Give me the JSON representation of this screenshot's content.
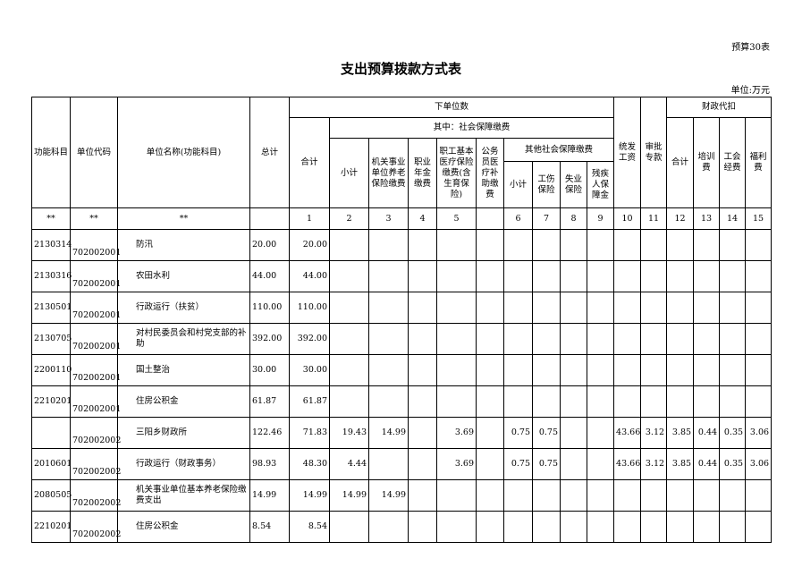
{
  "form_no": "预算30表",
  "title": "支出预算拨款方式表",
  "unit": "单位:万元",
  "headers": {
    "func": "功能科目",
    "code": "单位代码",
    "name": "单位名称(功能科目)",
    "total": "总计",
    "lower": "下单位数",
    "fiscal": "财政代扣",
    "heji": "合计",
    "social": "其中：社会保障缴费",
    "xiaoji": "小计",
    "pension": "机关事业单位养老保险缴费",
    "annuity": "职业年金缴费",
    "medical": "职工基本医疗保险缴费(含生育保险)",
    "civil": "公务员医疗补助缴费",
    "other": "其他社会保障缴费",
    "xiaoji2": "小计",
    "injury": "工伤保险",
    "unemp": "失业保险",
    "disab": "残疾人保障金",
    "salary": "统发工资",
    "special": "审批专款",
    "f_heji": "合计",
    "training": "培训费",
    "union": "工会经费",
    "welfare": "福利费"
  },
  "index_row": [
    "**",
    "**",
    "**",
    "",
    "1",
    "2",
    "3",
    "4",
    "5",
    "",
    "6",
    "7",
    "8",
    "9",
    "10",
    "11",
    "12",
    "13",
    "14",
    "15"
  ],
  "rows": [
    {
      "func": "2130314",
      "code": "702002001",
      "name": "防汛",
      "vals": [
        "20.00",
        "20.00",
        "",
        "",
        "",
        "",
        "",
        "",
        "",
        "",
        "",
        "",
        "",
        "",
        "",
        "",
        ""
      ]
    },
    {
      "func": "2130316",
      "code": "702002001",
      "name": "农田水利",
      "vals": [
        "44.00",
        "44.00",
        "",
        "",
        "",
        "",
        "",
        "",
        "",
        "",
        "",
        "",
        "",
        "",
        "",
        "",
        ""
      ]
    },
    {
      "func": "2130501",
      "code": "702002001",
      "name": "行政运行（扶贫）",
      "vals": [
        "110.00",
        "110.00",
        "",
        "",
        "",
        "",
        "",
        "",
        "",
        "",
        "",
        "",
        "",
        "",
        "",
        "",
        ""
      ]
    },
    {
      "func": "2130705",
      "code": "702002001",
      "name": "对村民委员会和村党支部的补助",
      "vals": [
        "392.00",
        "392.00",
        "",
        "",
        "",
        "",
        "",
        "",
        "",
        "",
        "",
        "",
        "",
        "",
        "",
        "",
        ""
      ]
    },
    {
      "func": "2200110",
      "code": "702002001",
      "name": "国土整治",
      "vals": [
        "30.00",
        "30.00",
        "",
        "",
        "",
        "",
        "",
        "",
        "",
        "",
        "",
        "",
        "",
        "",
        "",
        "",
        ""
      ]
    },
    {
      "func": "2210201",
      "code": "702002001",
      "name": "住房公积金",
      "vals": [
        "61.87",
        "61.87",
        "",
        "",
        "",
        "",
        "",
        "",
        "",
        "",
        "",
        "",
        "",
        "",
        "",
        "",
        ""
      ]
    },
    {
      "func": "",
      "code": "702002002",
      "name": "三阳乡财政所",
      "vals": [
        "122.46",
        "71.83",
        "19.43",
        "14.99",
        "",
        "3.69",
        "",
        "0.75",
        "0.75",
        "",
        "",
        "43.66",
        "3.12",
        "3.85",
        "0.44",
        "0.35",
        "3.06"
      ]
    },
    {
      "func": "2010601",
      "code": "702002002",
      "name": "行政运行（财政事务）",
      "vals": [
        "98.93",
        "48.30",
        "4.44",
        "",
        "",
        "3.69",
        "",
        "0.75",
        "0.75",
        "",
        "",
        "43.66",
        "3.12",
        "3.85",
        "0.44",
        "0.35",
        "3.06"
      ]
    },
    {
      "func": "2080505",
      "code": "702002002",
      "name": "机关事业单位基本养老保险缴费支出",
      "vals": [
        "14.99",
        "14.99",
        "14.99",
        "14.99",
        "",
        "",
        "",
        "",
        "",
        "",
        "",
        "",
        "",
        "",
        "",
        "",
        ""
      ]
    },
    {
      "func": "2210201",
      "code": "702002002",
      "name": "住房公积金",
      "vals": [
        "8.54",
        "8.54",
        "",
        "",
        "",
        "",
        "",
        "",
        "",
        "",
        "",
        "",
        "",
        "",
        "",
        "",
        ""
      ]
    }
  ]
}
